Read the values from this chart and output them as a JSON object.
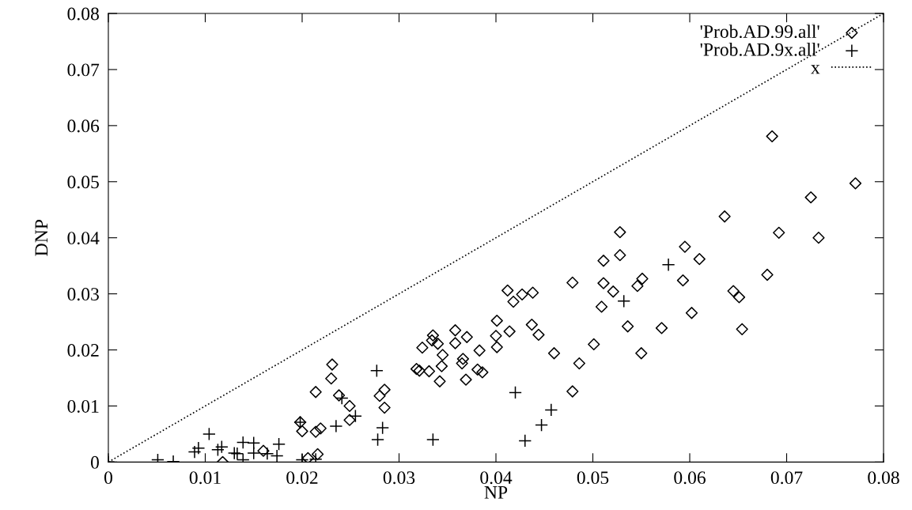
{
  "chart_data": {
    "type": "scatter",
    "xlabel": "NP",
    "ylabel": "DNP",
    "xlim": [
      0,
      0.08
    ],
    "ylim": [
      0,
      0.08
    ],
    "xticks": [
      0,
      0.01,
      0.02,
      0.03,
      0.04,
      0.05,
      0.06,
      0.07,
      0.08
    ],
    "yticks": [
      0,
      0.01,
      0.02,
      0.03,
      0.04,
      0.05,
      0.06,
      0.07,
      0.08
    ],
    "grid": false,
    "legend": "top right",
    "series": [
      {
        "name": "'Prob.AD.99.all'",
        "marker": "diamond",
        "color": "#000000",
        "x": [
          0.0231,
          0.023,
          0.0214,
          0.0238,
          0.0249,
          0.0249,
          0.0198,
          0.02,
          0.0214,
          0.0219,
          0.016,
          0.0118,
          0.0206,
          0.0216,
          0.028,
          0.0285,
          0.0285,
          0.0318,
          0.0321,
          0.0324,
          0.0331,
          0.0335,
          0.0334,
          0.034,
          0.0345,
          0.0344,
          0.0342,
          0.0358,
          0.0358,
          0.037,
          0.0366,
          0.0365,
          0.0369,
          0.0383,
          0.0381,
          0.0386,
          0.0401,
          0.04,
          0.0401,
          0.0412,
          0.0418,
          0.0427,
          0.0438,
          0.0414,
          0.0437,
          0.0444,
          0.046,
          0.0479,
          0.0479,
          0.0501,
          0.0486,
          0.0509,
          0.0511,
          0.0511,
          0.0521,
          0.0528,
          0.0528,
          0.0536,
          0.0546,
          0.0551,
          0.055,
          0.0571,
          0.0595,
          0.0593,
          0.061,
          0.0602,
          0.0685,
          0.0771,
          0.0725,
          0.0636,
          0.0692,
          0.0733,
          0.068,
          0.0645,
          0.0651,
          0.0654
        ],
        "values": [
          0.0174,
          0.0149,
          0.0125,
          0.0119,
          0.01,
          0.0075,
          0.0071,
          0.0055,
          0.0054,
          0.006,
          0.002,
          0.0,
          0.0007,
          0.0014,
          0.0118,
          0.0129,
          0.0097,
          0.0166,
          0.0163,
          0.0204,
          0.0162,
          0.0226,
          0.0217,
          0.0211,
          0.0191,
          0.0171,
          0.0144,
          0.0235,
          0.0212,
          0.0223,
          0.0184,
          0.0176,
          0.0147,
          0.0199,
          0.0165,
          0.016,
          0.0252,
          0.0225,
          0.0205,
          0.0306,
          0.0286,
          0.0299,
          0.0302,
          0.0233,
          0.0245,
          0.0227,
          0.0194,
          0.032,
          0.0126,
          0.021,
          0.0176,
          0.0277,
          0.0359,
          0.0319,
          0.0304,
          0.041,
          0.0369,
          0.0242,
          0.0314,
          0.0327,
          0.0194,
          0.0239,
          0.0384,
          0.0324,
          0.0362,
          0.0266,
          0.0581,
          0.0497,
          0.0472,
          0.0438,
          0.0409,
          0.04,
          0.0334,
          0.0305,
          0.0294,
          0.0237
        ]
      },
      {
        "name": "'Prob.AD.9x.all'",
        "marker": "cross",
        "color": "#000000",
        "x": [
          0,
          0.0051,
          0.0067,
          0.0104,
          0.0089,
          0.0093,
          0.0113,
          0.0117,
          0.013,
          0.0133,
          0.0139,
          0.0139,
          0.015,
          0.015,
          0.0164,
          0.0174,
          0.0176,
          0.02,
          0.0214,
          0.0198,
          0.0241,
          0.0255,
          0.0235,
          0.0277,
          0.0278,
          0.0283,
          0.0335,
          0.042,
          0.0457,
          0.0447,
          0.043,
          0.0578,
          0.0532
        ],
        "values": [
          0,
          0.0004,
          0.0001,
          0.005,
          0.0018,
          0.0025,
          0.0022,
          0.0027,
          0.0016,
          0.0015,
          0.0035,
          0.0004,
          0.0034,
          0.0016,
          0.0015,
          0.0011,
          0.0032,
          0.0004,
          0.0005,
          0.0071,
          0.0114,
          0.0082,
          0.0064,
          0.0163,
          0.004,
          0.0061,
          0.004,
          0.0124,
          0.0093,
          0.0066,
          0.0038,
          0.0352,
          0.0287
        ]
      },
      {
        "name": "x",
        "type": "line",
        "marker": "none",
        "line_style": "dotted",
        "color": "#000000",
        "x": [
          0,
          0.08
        ],
        "values": [
          0,
          0.08
        ]
      }
    ]
  }
}
